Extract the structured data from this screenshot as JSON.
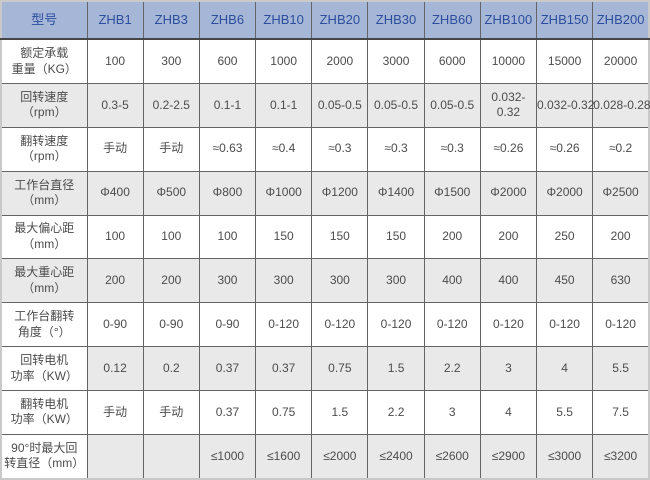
{
  "colors": {
    "header_bg": "#a5b6d6",
    "header_text": "#2d4e9d",
    "body_text": "#4c4c4c",
    "row_alt_bg": "#e9e9e9",
    "row_bg": "#ffffff",
    "grid_border": "#646464",
    "outer_border": "#c9c9c9",
    "header_divider": "#454545"
  },
  "table": {
    "header": {
      "model_column_label": "型号",
      "models": [
        "ZHB1",
        "ZHB3",
        "ZHB6",
        "ZHB10",
        "ZHB20",
        "ZHB30",
        "ZHB60",
        "ZHB100",
        "ZHB150",
        "ZHB200"
      ]
    },
    "rows": [
      {
        "label": "额定承载\n重量（KG）",
        "shade": "white",
        "values": [
          "100",
          "300",
          "600",
          "1000",
          "2000",
          "3000",
          "6000",
          "10000",
          "15000",
          "20000"
        ]
      },
      {
        "label": "回转速度\n（rpm）",
        "shade": "gray",
        "values": [
          "0.3-5",
          "0.2-2.5",
          "0.1-1",
          "0.1-1",
          "0.05-0.5",
          "0.05-0.5",
          "0.05-0.5",
          "0.032-\n0.32",
          "0.032-0.32",
          "0.028-0.28"
        ]
      },
      {
        "label": "翻转速度\n（rpm）",
        "shade": "white",
        "values": [
          "手动",
          "手动",
          "≈0.63",
          "≈0.4",
          "≈0.3",
          "≈0.3",
          "≈0.3",
          "≈0.26",
          "≈0.26",
          "≈0.2"
        ]
      },
      {
        "label": "工作台直径\n（mm）",
        "shade": "gray",
        "values": [
          "Φ400",
          "Φ500",
          "Φ800",
          "Φ1000",
          "Φ1200",
          "Φ1400",
          "Φ1500",
          "Φ2000",
          "Φ2000",
          "Φ2500"
        ]
      },
      {
        "label": "最大偏心距\n（mm）",
        "shade": "white",
        "values": [
          "100",
          "100",
          "100",
          "150",
          "150",
          "150",
          "200",
          "200",
          "250",
          "200"
        ]
      },
      {
        "label": "最大重心距\n（mm）",
        "shade": "gray",
        "values": [
          "200",
          "200",
          "300",
          "300",
          "300",
          "300",
          "400",
          "400",
          "450",
          "630"
        ]
      },
      {
        "label": "工作台翻转\n角度（°）",
        "shade": "white",
        "values": [
          "0-90",
          "0-90",
          "0-90",
          "0-120",
          "0-120",
          "0-120",
          "0-120",
          "0-120",
          "0-120",
          "0-120"
        ]
      },
      {
        "label": "回转电机\n功率（KW）",
        "shade": "gray",
        "label_shade": "white",
        "values": [
          "0.12",
          "0.2",
          "0.37",
          "0.37",
          "0.75",
          "1.5",
          "2.2",
          "3",
          "4",
          "5.5"
        ]
      },
      {
        "label": "翻转电机\n功率（KW）",
        "shade": "white",
        "values": [
          "手动",
          "手动",
          "0.37",
          "0.75",
          "1.5",
          "2.2",
          "3",
          "4",
          "5.5",
          "7.5"
        ]
      },
      {
        "label": "90°时最大回\n转直径（mm）",
        "shade": "gray",
        "label_shade": "white",
        "values": [
          "",
          "",
          "≤1000",
          "≤1600",
          "≤2000",
          "≤2400",
          "≤2600",
          "≤2900",
          "≤3000",
          "≤3200"
        ]
      }
    ]
  }
}
